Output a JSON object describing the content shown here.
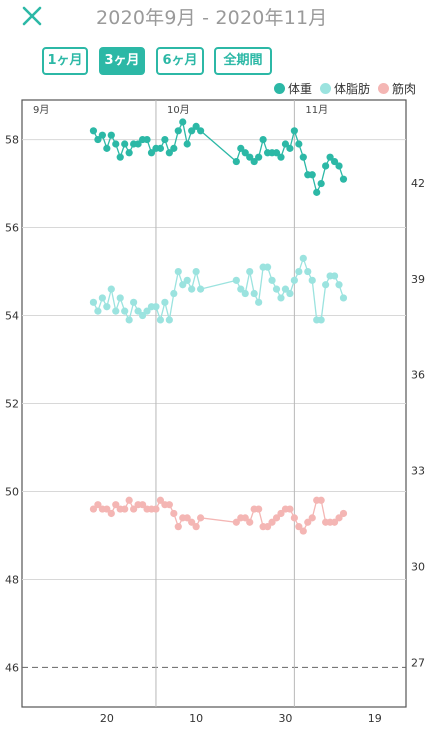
{
  "header": {
    "title": "2020年9月 - 2020年11月"
  },
  "ranges": [
    {
      "label": "1ヶ月",
      "active": false
    },
    {
      "label": "3ヶ月",
      "active": true
    },
    {
      "label": "6ヶ月",
      "active": false
    },
    {
      "label": "全期間",
      "active": false
    }
  ],
  "colors": {
    "accent": "#2cb8a6",
    "weight": "#2cb8a6",
    "fat": "#9be3df",
    "muscle": "#f4b6b4",
    "grid": "#d8d8d8",
    "axis": "#555555"
  },
  "chart_data": {
    "type": "line",
    "title": "",
    "xlabel": "",
    "ylabel": "",
    "x_range": [
      "2020-09-01",
      "2020-11-26"
    ],
    "x_month_labels": [
      {
        "date": "2020-09-01",
        "label": "9月"
      },
      {
        "date": "2020-10-01",
        "label": "10月"
      },
      {
        "date": "2020-11-01",
        "label": "11月"
      }
    ],
    "x_tick_labels": [
      {
        "date": "2020-09-20",
        "label": "20"
      },
      {
        "date": "2020-10-10",
        "label": "10"
      },
      {
        "date": "2020-10-30",
        "label": "30"
      },
      {
        "date": "2020-11-19",
        "label": "19"
      }
    ],
    "y_left": {
      "ticks": [
        46,
        48,
        50,
        52,
        54,
        56,
        58
      ],
      "range": [
        45.1,
        58.9
      ],
      "baseline": 46
    },
    "y_right": {
      "ticks": [
        27,
        30,
        33,
        36,
        39,
        42
      ],
      "range": [
        25.6,
        44.6
      ]
    },
    "series": [
      {
        "name": "体重",
        "axis": "left",
        "points": [
          [
            "2020-09-17",
            58.2
          ],
          [
            "2020-09-18",
            58.0
          ],
          [
            "2020-09-19",
            58.1
          ],
          [
            "2020-09-20",
            57.8
          ],
          [
            "2020-09-21",
            58.1
          ],
          [
            "2020-09-22",
            57.9
          ],
          [
            "2020-09-23",
            57.6
          ],
          [
            "2020-09-24",
            57.9
          ],
          [
            "2020-09-25",
            57.7
          ],
          [
            "2020-09-26",
            57.9
          ],
          [
            "2020-09-27",
            57.9
          ],
          [
            "2020-09-28",
            58.0
          ],
          [
            "2020-09-29",
            58.0
          ],
          [
            "2020-09-30",
            57.7
          ],
          [
            "2020-10-01",
            57.8
          ],
          [
            "2020-10-02",
            57.8
          ],
          [
            "2020-10-03",
            58.0
          ],
          [
            "2020-10-04",
            57.7
          ],
          [
            "2020-10-05",
            57.8
          ],
          [
            "2020-10-06",
            58.2
          ],
          [
            "2020-10-07",
            58.4
          ],
          [
            "2020-10-08",
            57.9
          ],
          [
            "2020-10-09",
            58.2
          ],
          [
            "2020-10-10",
            58.3
          ],
          [
            "2020-10-11",
            58.2
          ],
          [
            "2020-10-19",
            57.5
          ],
          [
            "2020-10-20",
            57.8
          ],
          [
            "2020-10-21",
            57.7
          ],
          [
            "2020-10-22",
            57.6
          ],
          [
            "2020-10-23",
            57.5
          ],
          [
            "2020-10-24",
            57.6
          ],
          [
            "2020-10-25",
            58.0
          ],
          [
            "2020-10-26",
            57.7
          ],
          [
            "2020-10-27",
            57.7
          ],
          [
            "2020-10-28",
            57.7
          ],
          [
            "2020-10-29",
            57.6
          ],
          [
            "2020-10-30",
            57.9
          ],
          [
            "2020-10-31",
            57.8
          ],
          [
            "2020-11-01",
            58.2
          ],
          [
            "2020-11-02",
            57.9
          ],
          [
            "2020-11-03",
            57.6
          ],
          [
            "2020-11-04",
            57.2
          ],
          [
            "2020-11-05",
            57.2
          ],
          [
            "2020-11-06",
            56.8
          ],
          [
            "2020-11-07",
            57.0
          ],
          [
            "2020-11-08",
            57.4
          ],
          [
            "2020-11-09",
            57.6
          ],
          [
            "2020-11-10",
            57.5
          ],
          [
            "2020-11-11",
            57.4
          ],
          [
            "2020-11-12",
            57.1
          ]
        ]
      },
      {
        "name": "体脂肪",
        "axis": "left",
        "points": [
          [
            "2020-09-17",
            54.3
          ],
          [
            "2020-09-18",
            54.1
          ],
          [
            "2020-09-19",
            54.4
          ],
          [
            "2020-09-20",
            54.2
          ],
          [
            "2020-09-21",
            54.6
          ],
          [
            "2020-09-22",
            54.1
          ],
          [
            "2020-09-23",
            54.4
          ],
          [
            "2020-09-24",
            54.1
          ],
          [
            "2020-09-25",
            53.9
          ],
          [
            "2020-09-26",
            54.3
          ],
          [
            "2020-09-27",
            54.1
          ],
          [
            "2020-09-28",
            54.0
          ],
          [
            "2020-09-29",
            54.1
          ],
          [
            "2020-09-30",
            54.2
          ],
          [
            "2020-10-01",
            54.2
          ],
          [
            "2020-10-02",
            53.9
          ],
          [
            "2020-10-03",
            54.3
          ],
          [
            "2020-10-04",
            53.9
          ],
          [
            "2020-10-05",
            54.5
          ],
          [
            "2020-10-06",
            55.0
          ],
          [
            "2020-10-07",
            54.7
          ],
          [
            "2020-10-08",
            54.8
          ],
          [
            "2020-10-09",
            54.6
          ],
          [
            "2020-10-10",
            55.0
          ],
          [
            "2020-10-11",
            54.6
          ],
          [
            "2020-10-19",
            54.8
          ],
          [
            "2020-10-20",
            54.6
          ],
          [
            "2020-10-21",
            54.5
          ],
          [
            "2020-10-22",
            55.0
          ],
          [
            "2020-10-23",
            54.5
          ],
          [
            "2020-10-24",
            54.3
          ],
          [
            "2020-10-25",
            55.1
          ],
          [
            "2020-10-26",
            55.1
          ],
          [
            "2020-10-27",
            54.8
          ],
          [
            "2020-10-28",
            54.6
          ],
          [
            "2020-10-29",
            54.4
          ],
          [
            "2020-10-30",
            54.6
          ],
          [
            "2020-10-31",
            54.5
          ],
          [
            "2020-11-01",
            54.8
          ],
          [
            "2020-11-02",
            55.0
          ],
          [
            "2020-11-03",
            55.3
          ],
          [
            "2020-11-04",
            55.0
          ],
          [
            "2020-11-05",
            54.8
          ],
          [
            "2020-11-06",
            53.9
          ],
          [
            "2020-11-07",
            53.9
          ],
          [
            "2020-11-08",
            54.7
          ],
          [
            "2020-11-09",
            54.9
          ],
          [
            "2020-11-10",
            54.9
          ],
          [
            "2020-11-11",
            54.7
          ],
          [
            "2020-11-12",
            54.4
          ]
        ]
      },
      {
        "name": "筋肉",
        "axis": "left",
        "points": [
          [
            "2020-09-17",
            49.6
          ],
          [
            "2020-09-18",
            49.7
          ],
          [
            "2020-09-19",
            49.6
          ],
          [
            "2020-09-20",
            49.6
          ],
          [
            "2020-09-21",
            49.5
          ],
          [
            "2020-09-22",
            49.7
          ],
          [
            "2020-09-23",
            49.6
          ],
          [
            "2020-09-24",
            49.6
          ],
          [
            "2020-09-25",
            49.8
          ],
          [
            "2020-09-26",
            49.6
          ],
          [
            "2020-09-27",
            49.7
          ],
          [
            "2020-09-28",
            49.7
          ],
          [
            "2020-09-29",
            49.6
          ],
          [
            "2020-09-30",
            49.6
          ],
          [
            "2020-10-01",
            49.6
          ],
          [
            "2020-10-02",
            49.8
          ],
          [
            "2020-10-03",
            49.7
          ],
          [
            "2020-10-04",
            49.7
          ],
          [
            "2020-10-05",
            49.5
          ],
          [
            "2020-10-06",
            49.2
          ],
          [
            "2020-10-07",
            49.4
          ],
          [
            "2020-10-08",
            49.4
          ],
          [
            "2020-10-09",
            49.3
          ],
          [
            "2020-10-10",
            49.2
          ],
          [
            "2020-10-11",
            49.4
          ],
          [
            "2020-10-19",
            49.3
          ],
          [
            "2020-10-20",
            49.4
          ],
          [
            "2020-10-21",
            49.4
          ],
          [
            "2020-10-22",
            49.3
          ],
          [
            "2020-10-23",
            49.6
          ],
          [
            "2020-10-24",
            49.6
          ],
          [
            "2020-10-25",
            49.2
          ],
          [
            "2020-10-26",
            49.2
          ],
          [
            "2020-10-27",
            49.3
          ],
          [
            "2020-10-28",
            49.4
          ],
          [
            "2020-10-29",
            49.5
          ],
          [
            "2020-10-30",
            49.6
          ],
          [
            "2020-10-31",
            49.6
          ],
          [
            "2020-11-01",
            49.4
          ],
          [
            "2020-11-02",
            49.2
          ],
          [
            "2020-11-03",
            49.1
          ],
          [
            "2020-11-04",
            49.3
          ],
          [
            "2020-11-05",
            49.4
          ],
          [
            "2020-11-06",
            49.8
          ],
          [
            "2020-11-07",
            49.8
          ],
          [
            "2020-11-08",
            49.3
          ],
          [
            "2020-11-09",
            49.3
          ],
          [
            "2020-11-10",
            49.3
          ],
          [
            "2020-11-11",
            49.4
          ],
          [
            "2020-11-12",
            49.5
          ]
        ]
      }
    ]
  }
}
